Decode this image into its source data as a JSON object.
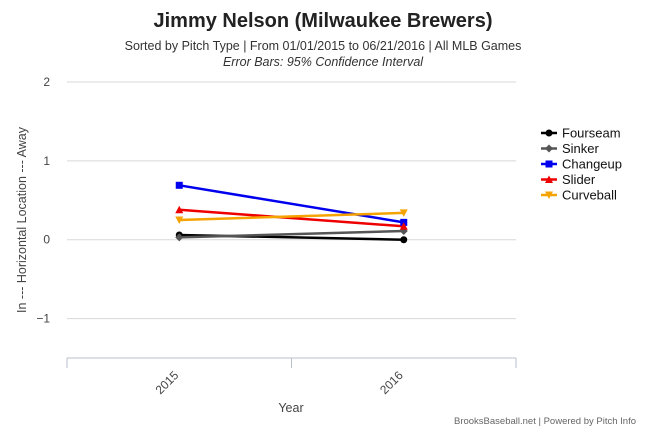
{
  "chart_data": {
    "type": "line",
    "title": "Jimmy Nelson (Milwaukee Brewers)",
    "subtitle": "Sorted by Pitch Type | From 01/01/2015 to 06/21/2016 | All MLB Games",
    "subtitle2": "Error Bars: 95% Confidence Interval",
    "xlabel": "Year",
    "ylabel": "In --- Horizontal Location --- Away",
    "categories": [
      "2015",
      "2016"
    ],
    "ylim": [
      -1.5,
      2
    ],
    "yticks": [
      2,
      1,
      0,
      -1
    ],
    "ytick_labels": [
      "2",
      "1",
      "0",
      "−1"
    ],
    "grid": true,
    "legend_position": "right",
    "series": [
      {
        "name": "Fourseam",
        "color": "#000000",
        "marker": "circle",
        "values": [
          0.06,
          0.0
        ]
      },
      {
        "name": "Sinker",
        "color": "#555555",
        "marker": "diamond",
        "values": [
          0.03,
          0.11
        ]
      },
      {
        "name": "Changeup",
        "color": "#0000ee",
        "marker": "square",
        "values": [
          0.69,
          0.22
        ]
      },
      {
        "name": "Slider",
        "color": "#ee0000",
        "marker": "triangle",
        "values": [
          0.38,
          0.17
        ]
      },
      {
        "name": "Curveball",
        "color": "#f5a300",
        "marker": "triangle-down",
        "values": [
          0.25,
          0.34
        ]
      }
    ],
    "credit": "BrooksBaseball.net | Powered by Pitch Info"
  }
}
